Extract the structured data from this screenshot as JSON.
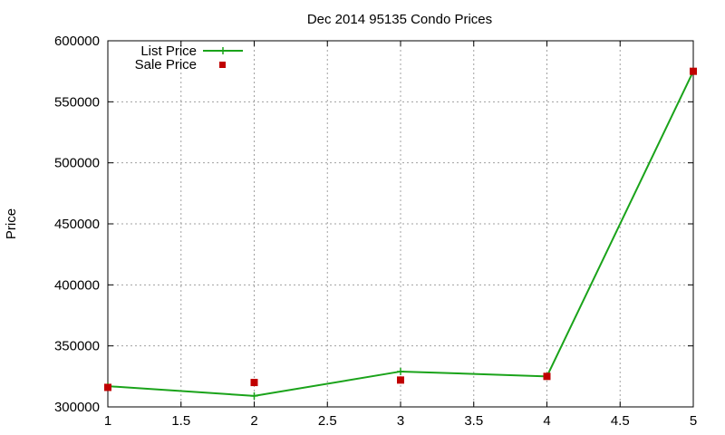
{
  "chart_data": {
    "type": "line",
    "title": "Dec 2014 95135 Condo Prices",
    "xlabel": "",
    "ylabel": "Price",
    "xlim": [
      1,
      5
    ],
    "ylim": [
      300000,
      600000
    ],
    "xticks": [
      "1",
      "1.5",
      "2",
      "2.5",
      "3",
      "3.5",
      "4",
      "4.5",
      "5"
    ],
    "yticks": [
      "300000",
      "350000",
      "400000",
      "450000",
      "500000",
      "550000",
      "600000"
    ],
    "grid": true,
    "legend_position": "top-left",
    "series": [
      {
        "name": "List Price",
        "style": "line-with-plus-points",
        "color": "#1aa31a",
        "x": [
          1,
          2,
          3,
          4,
          5
        ],
        "y": [
          317000,
          309000,
          329000,
          325000,
          575000
        ]
      },
      {
        "name": "Sale Price",
        "style": "square-points",
        "color": "#c00000",
        "x": [
          1,
          2,
          3,
          4,
          5
        ],
        "y": [
          316000,
          320000,
          322000,
          325000,
          575000
        ]
      }
    ]
  }
}
